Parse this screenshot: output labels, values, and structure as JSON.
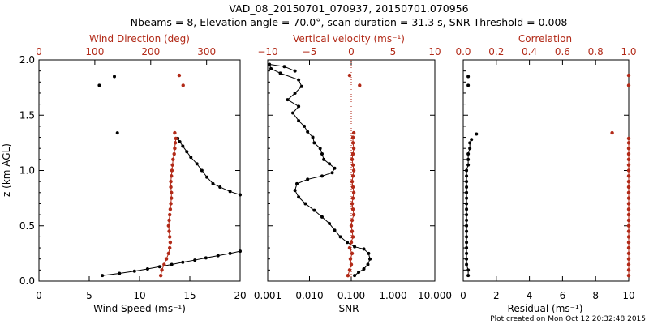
{
  "title_line1": "VAD_08_20150701_070937, 20150701.070956",
  "title_line2": "Nbeams = 8, Elevation angle = 70.0°, scan duration = 31.3 s, SNR Threshold = 0.008",
  "footer": "Plot created on Mon Oct 12 20:32:48 2015",
  "colors": {
    "primary": "#000000",
    "secondary": "#b22a18"
  },
  "y_axis": {
    "label": "z (km AGL)",
    "ticks": [
      "0.0",
      "0.5",
      "1.0",
      "1.5",
      "2.0"
    ],
    "ylim": [
      0.0,
      2.0
    ]
  },
  "panels": {
    "p1": {
      "bottom_label": "Wind Speed (ms⁻¹)",
      "bottom_ticks": [
        "0",
        "5",
        "10",
        "15",
        "20"
      ],
      "top_label": "Wind Direction (deg)",
      "top_ticks": [
        "0",
        "100",
        "200",
        "300"
      ]
    },
    "p2": {
      "bottom_label": "SNR",
      "bottom_ticks": [
        "0.001",
        "0.010",
        "0.100",
        "1.000",
        "10.000"
      ],
      "top_label": "Vertical velocity (ms⁻¹)",
      "top_ticks": [
        "−10",
        "−5",
        "0",
        "5",
        "10"
      ]
    },
    "p3": {
      "bottom_label": "Residual (ms⁻¹)",
      "bottom_ticks": [
        "0",
        "2",
        "4",
        "6",
        "8",
        "10"
      ],
      "top_label": "Correlation",
      "top_ticks": [
        "0.0",
        "0.2",
        "0.4",
        "0.6",
        "0.8",
        "1.0"
      ]
    }
  },
  "chart_data": [
    {
      "type": "scatter",
      "ylabel": "z (km AGL)",
      "xlabel": "Wind Speed (ms⁻¹)",
      "x2label": "Wind Direction (deg)",
      "xlim": [
        0,
        20
      ],
      "x2lim": [
        0,
        360
      ],
      "ylim": [
        0.0,
        2.0
      ],
      "series": [
        {
          "name": "Wind Speed (ms⁻¹)",
          "color": "#000000",
          "connected": true,
          "points": [
            [
              6.3,
              0.05
            ],
            [
              8.0,
              0.07
            ],
            [
              9.5,
              0.09
            ],
            [
              10.8,
              0.11
            ],
            [
              12.0,
              0.13
            ],
            [
              13.2,
              0.15
            ],
            [
              14.3,
              0.17
            ],
            [
              15.5,
              0.19
            ],
            [
              16.6,
              0.21
            ],
            [
              17.8,
              0.23
            ],
            [
              19.0,
              0.25
            ],
            [
              20.0,
              0.27
            ],
            [
              20.0,
              0.78
            ],
            [
              19.0,
              0.81
            ],
            [
              18.0,
              0.85
            ],
            [
              17.3,
              0.88
            ],
            [
              16.7,
              0.94
            ],
            [
              16.2,
              1.0
            ],
            [
              15.7,
              1.06
            ],
            [
              15.1,
              1.12
            ],
            [
              14.7,
              1.17
            ],
            [
              14.3,
              1.22
            ],
            [
              14.0,
              1.26
            ],
            [
              13.8,
              1.29
            ]
          ]
        },
        {
          "name": "Wind Speed (ms⁻¹) isolated",
          "color": "#000000",
          "connected": false,
          "points": [
            [
              6.0,
              1.77
            ],
            [
              7.5,
              1.85
            ],
            [
              7.8,
              1.34
            ]
          ]
        },
        {
          "name": "Wind Direction (deg)",
          "color": "#b22a18",
          "axis": "top",
          "connected": true,
          "points": [
            [
              218,
              0.05
            ],
            [
              220,
              0.1
            ],
            [
              224,
              0.15
            ],
            [
              228,
              0.2
            ],
            [
              232,
              0.25
            ],
            [
              234,
              0.3
            ],
            [
              235,
              0.35
            ],
            [
              234,
              0.4
            ],
            [
              233,
              0.45
            ],
            [
              232,
              0.5
            ],
            [
              233,
              0.55
            ],
            [
              234,
              0.6
            ],
            [
              235,
              0.65
            ],
            [
              236,
              0.7
            ],
            [
              237,
              0.75
            ],
            [
              237,
              0.8
            ],
            [
              236,
              0.85
            ],
            [
              236,
              0.9
            ],
            [
              237,
              0.95
            ],
            [
              238,
              1.0
            ],
            [
              239,
              1.05
            ],
            [
              240,
              1.1
            ],
            [
              242,
              1.15
            ],
            [
              243,
              1.2
            ],
            [
              244,
              1.25
            ],
            [
              245,
              1.29
            ]
          ]
        },
        {
          "name": "Wind Direction (deg) isolated",
          "color": "#b22a18",
          "axis": "top",
          "connected": false,
          "points": [
            [
              251,
              1.86
            ],
            [
              258,
              1.77
            ],
            [
              243,
              1.34
            ]
          ]
        }
      ]
    },
    {
      "type": "scatter",
      "ylabel": "z (km AGL)",
      "xlabel": "SNR",
      "xscale": "log",
      "xlim": [
        0.001,
        10.0
      ],
      "x2label": "Vertical velocity (ms⁻¹)",
      "x2lim": [
        -10,
        10
      ],
      "reference_line_x2": 0,
      "series": [
        {
          "name": "SNR",
          "color": "#000000",
          "connected": true,
          "points": [
            [
              0.12,
              0.05
            ],
            [
              0.15,
              0.08
            ],
            [
              0.2,
              0.11
            ],
            [
              0.25,
              0.15
            ],
            [
              0.28,
              0.2
            ],
            [
              0.26,
              0.25
            ],
            [
              0.2,
              0.29
            ],
            [
              0.12,
              0.31
            ],
            [
              0.08,
              0.35
            ],
            [
              0.055,
              0.4
            ],
            [
              0.04,
              0.46
            ],
            [
              0.03,
              0.52
            ],
            [
              0.02,
              0.58
            ],
            [
              0.013,
              0.64
            ],
            [
              0.008,
              0.7
            ],
            [
              0.0055,
              0.76
            ],
            [
              0.0045,
              0.82
            ],
            [
              0.005,
              0.88
            ],
            [
              0.009,
              0.92
            ],
            [
              0.02,
              0.95
            ],
            [
              0.035,
              0.98
            ],
            [
              0.04,
              1.02
            ],
            [
              0.03,
              1.06
            ],
            [
              0.022,
              1.1
            ],
            [
              0.02,
              1.15
            ],
            [
              0.018,
              1.2
            ],
            [
              0.013,
              1.25
            ],
            [
              0.012,
              1.3
            ],
            [
              0.009,
              1.35
            ],
            [
              0.0075,
              1.4
            ],
            [
              0.0055,
              1.45
            ],
            [
              0.004,
              1.52
            ],
            [
              0.0055,
              1.58
            ],
            [
              0.003,
              1.64
            ],
            [
              0.0045,
              1.7
            ],
            [
              0.0065,
              1.76
            ],
            [
              0.0055,
              1.82
            ],
            [
              0.002,
              1.88
            ],
            [
              0.0012,
              1.92
            ],
            [
              0.0011,
              1.96
            ],
            [
              0.0025,
              1.94
            ],
            [
              0.0045,
              1.9
            ]
          ]
        },
        {
          "name": "Vertical velocity (ms⁻¹)",
          "color": "#b22a18",
          "axis": "top",
          "connected": true,
          "points": [
            [
              -0.4,
              0.05
            ],
            [
              -0.2,
              0.1
            ],
            [
              0.0,
              0.15
            ],
            [
              -0.1,
              0.2
            ],
            [
              0.1,
              0.25
            ],
            [
              -0.2,
              0.3
            ],
            [
              0.0,
              0.35
            ],
            [
              0.2,
              0.4
            ],
            [
              0.1,
              0.45
            ],
            [
              0.0,
              0.5
            ],
            [
              0.1,
              0.55
            ],
            [
              0.3,
              0.6
            ],
            [
              0.2,
              0.65
            ],
            [
              0.1,
              0.7
            ],
            [
              0.2,
              0.75
            ],
            [
              0.3,
              0.8
            ],
            [
              0.2,
              0.85
            ],
            [
              0.1,
              0.9
            ],
            [
              0.2,
              0.95
            ],
            [
              0.3,
              1.0
            ],
            [
              0.2,
              1.05
            ],
            [
              0.1,
              1.1
            ],
            [
              0.2,
              1.15
            ],
            [
              0.3,
              1.2
            ],
            [
              0.2,
              1.25
            ],
            [
              0.2,
              1.3
            ]
          ]
        },
        {
          "name": "Vertical velocity (ms⁻¹) isolated",
          "color": "#b22a18",
          "axis": "top",
          "connected": false,
          "points": [
            [
              -0.2,
              1.86
            ],
            [
              1.0,
              1.77
            ],
            [
              0.3,
              1.34
            ]
          ]
        }
      ]
    },
    {
      "type": "scatter",
      "ylabel": "z (km AGL)",
      "xlabel": "Residual (ms⁻¹)",
      "xlim": [
        0,
        10
      ],
      "x2label": "Correlation",
      "x2lim": [
        0.0,
        1.0
      ],
      "series": [
        {
          "name": "Residual (ms⁻¹)",
          "color": "#000000",
          "connected": true,
          "points": [
            [
              0.3,
              0.05
            ],
            [
              0.3,
              0.1
            ],
            [
              0.2,
              0.15
            ],
            [
              0.2,
              0.2
            ],
            [
              0.2,
              0.25
            ],
            [
              0.2,
              0.3
            ],
            [
              0.2,
              0.35
            ],
            [
              0.2,
              0.4
            ],
            [
              0.2,
              0.45
            ],
            [
              0.2,
              0.5
            ],
            [
              0.2,
              0.55
            ],
            [
              0.2,
              0.6
            ],
            [
              0.2,
              0.65
            ],
            [
              0.2,
              0.7
            ],
            [
              0.2,
              0.75
            ],
            [
              0.2,
              0.8
            ],
            [
              0.2,
              0.85
            ],
            [
              0.2,
              0.9
            ],
            [
              0.2,
              0.95
            ],
            [
              0.2,
              1.0
            ],
            [
              0.3,
              1.05
            ],
            [
              0.3,
              1.1
            ],
            [
              0.3,
              1.15
            ],
            [
              0.4,
              1.2
            ],
            [
              0.4,
              1.25
            ],
            [
              0.5,
              1.28
            ]
          ]
        },
        {
          "name": "Residual (ms⁻¹) isolated",
          "color": "#000000",
          "connected": false,
          "points": [
            [
              0.3,
              1.77
            ],
            [
              0.3,
              1.85
            ],
            [
              0.8,
              1.33
            ]
          ]
        },
        {
          "name": "Correlation",
          "color": "#b22a18",
          "axis": "top",
          "connected": true,
          "points": [
            [
              1.0,
              0.05
            ],
            [
              1.0,
              0.1
            ],
            [
              1.0,
              0.15
            ],
            [
              1.0,
              0.2
            ],
            [
              1.0,
              0.25
            ],
            [
              1.0,
              0.3
            ],
            [
              1.0,
              0.35
            ],
            [
              1.0,
              0.4
            ],
            [
              1.0,
              0.45
            ],
            [
              1.0,
              0.5
            ],
            [
              1.0,
              0.55
            ],
            [
              1.0,
              0.6
            ],
            [
              1.0,
              0.65
            ],
            [
              1.0,
              0.7
            ],
            [
              1.0,
              0.75
            ],
            [
              1.0,
              0.8
            ],
            [
              1.0,
              0.85
            ],
            [
              1.0,
              0.9
            ],
            [
              1.0,
              0.95
            ],
            [
              1.0,
              1.0
            ],
            [
              1.0,
              1.05
            ],
            [
              1.0,
              1.1
            ],
            [
              1.0,
              1.15
            ],
            [
              1.0,
              1.2
            ],
            [
              1.0,
              1.25
            ],
            [
              1.0,
              1.29
            ]
          ]
        },
        {
          "name": "Correlation isolated",
          "color": "#b22a18",
          "axis": "top",
          "connected": false,
          "points": [
            [
              1.0,
              1.77
            ],
            [
              1.0,
              1.86
            ],
            [
              0.9,
              1.34
            ]
          ]
        }
      ]
    }
  ]
}
